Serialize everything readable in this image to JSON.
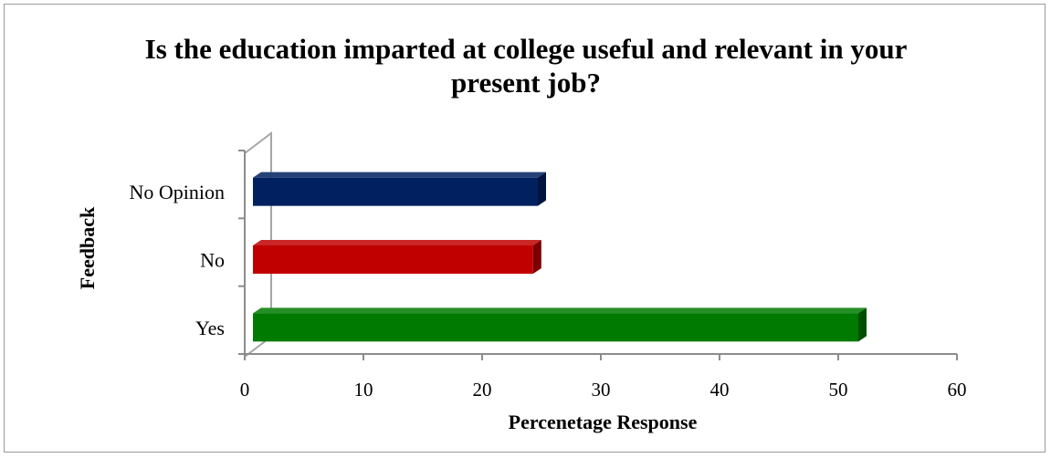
{
  "chart_data": {
    "type": "bar",
    "orientation": "horizontal",
    "title_lines": [
      "Is the education imparted at college useful and relevant in your",
      "present job?"
    ],
    "xlabel": "Percenetage Response",
    "ylabel": "Feedback",
    "categories": [
      "Yes",
      "No",
      "No Opinion"
    ],
    "values": [
      52,
      24.6,
      25
    ],
    "colors": [
      "#007a00",
      "#c00000",
      "#002060"
    ],
    "xlim": [
      0,
      60
    ],
    "xticks": [
      0,
      10,
      20,
      30,
      40,
      50,
      60
    ],
    "grid": false,
    "legend": "none",
    "style": "3d-bar"
  }
}
